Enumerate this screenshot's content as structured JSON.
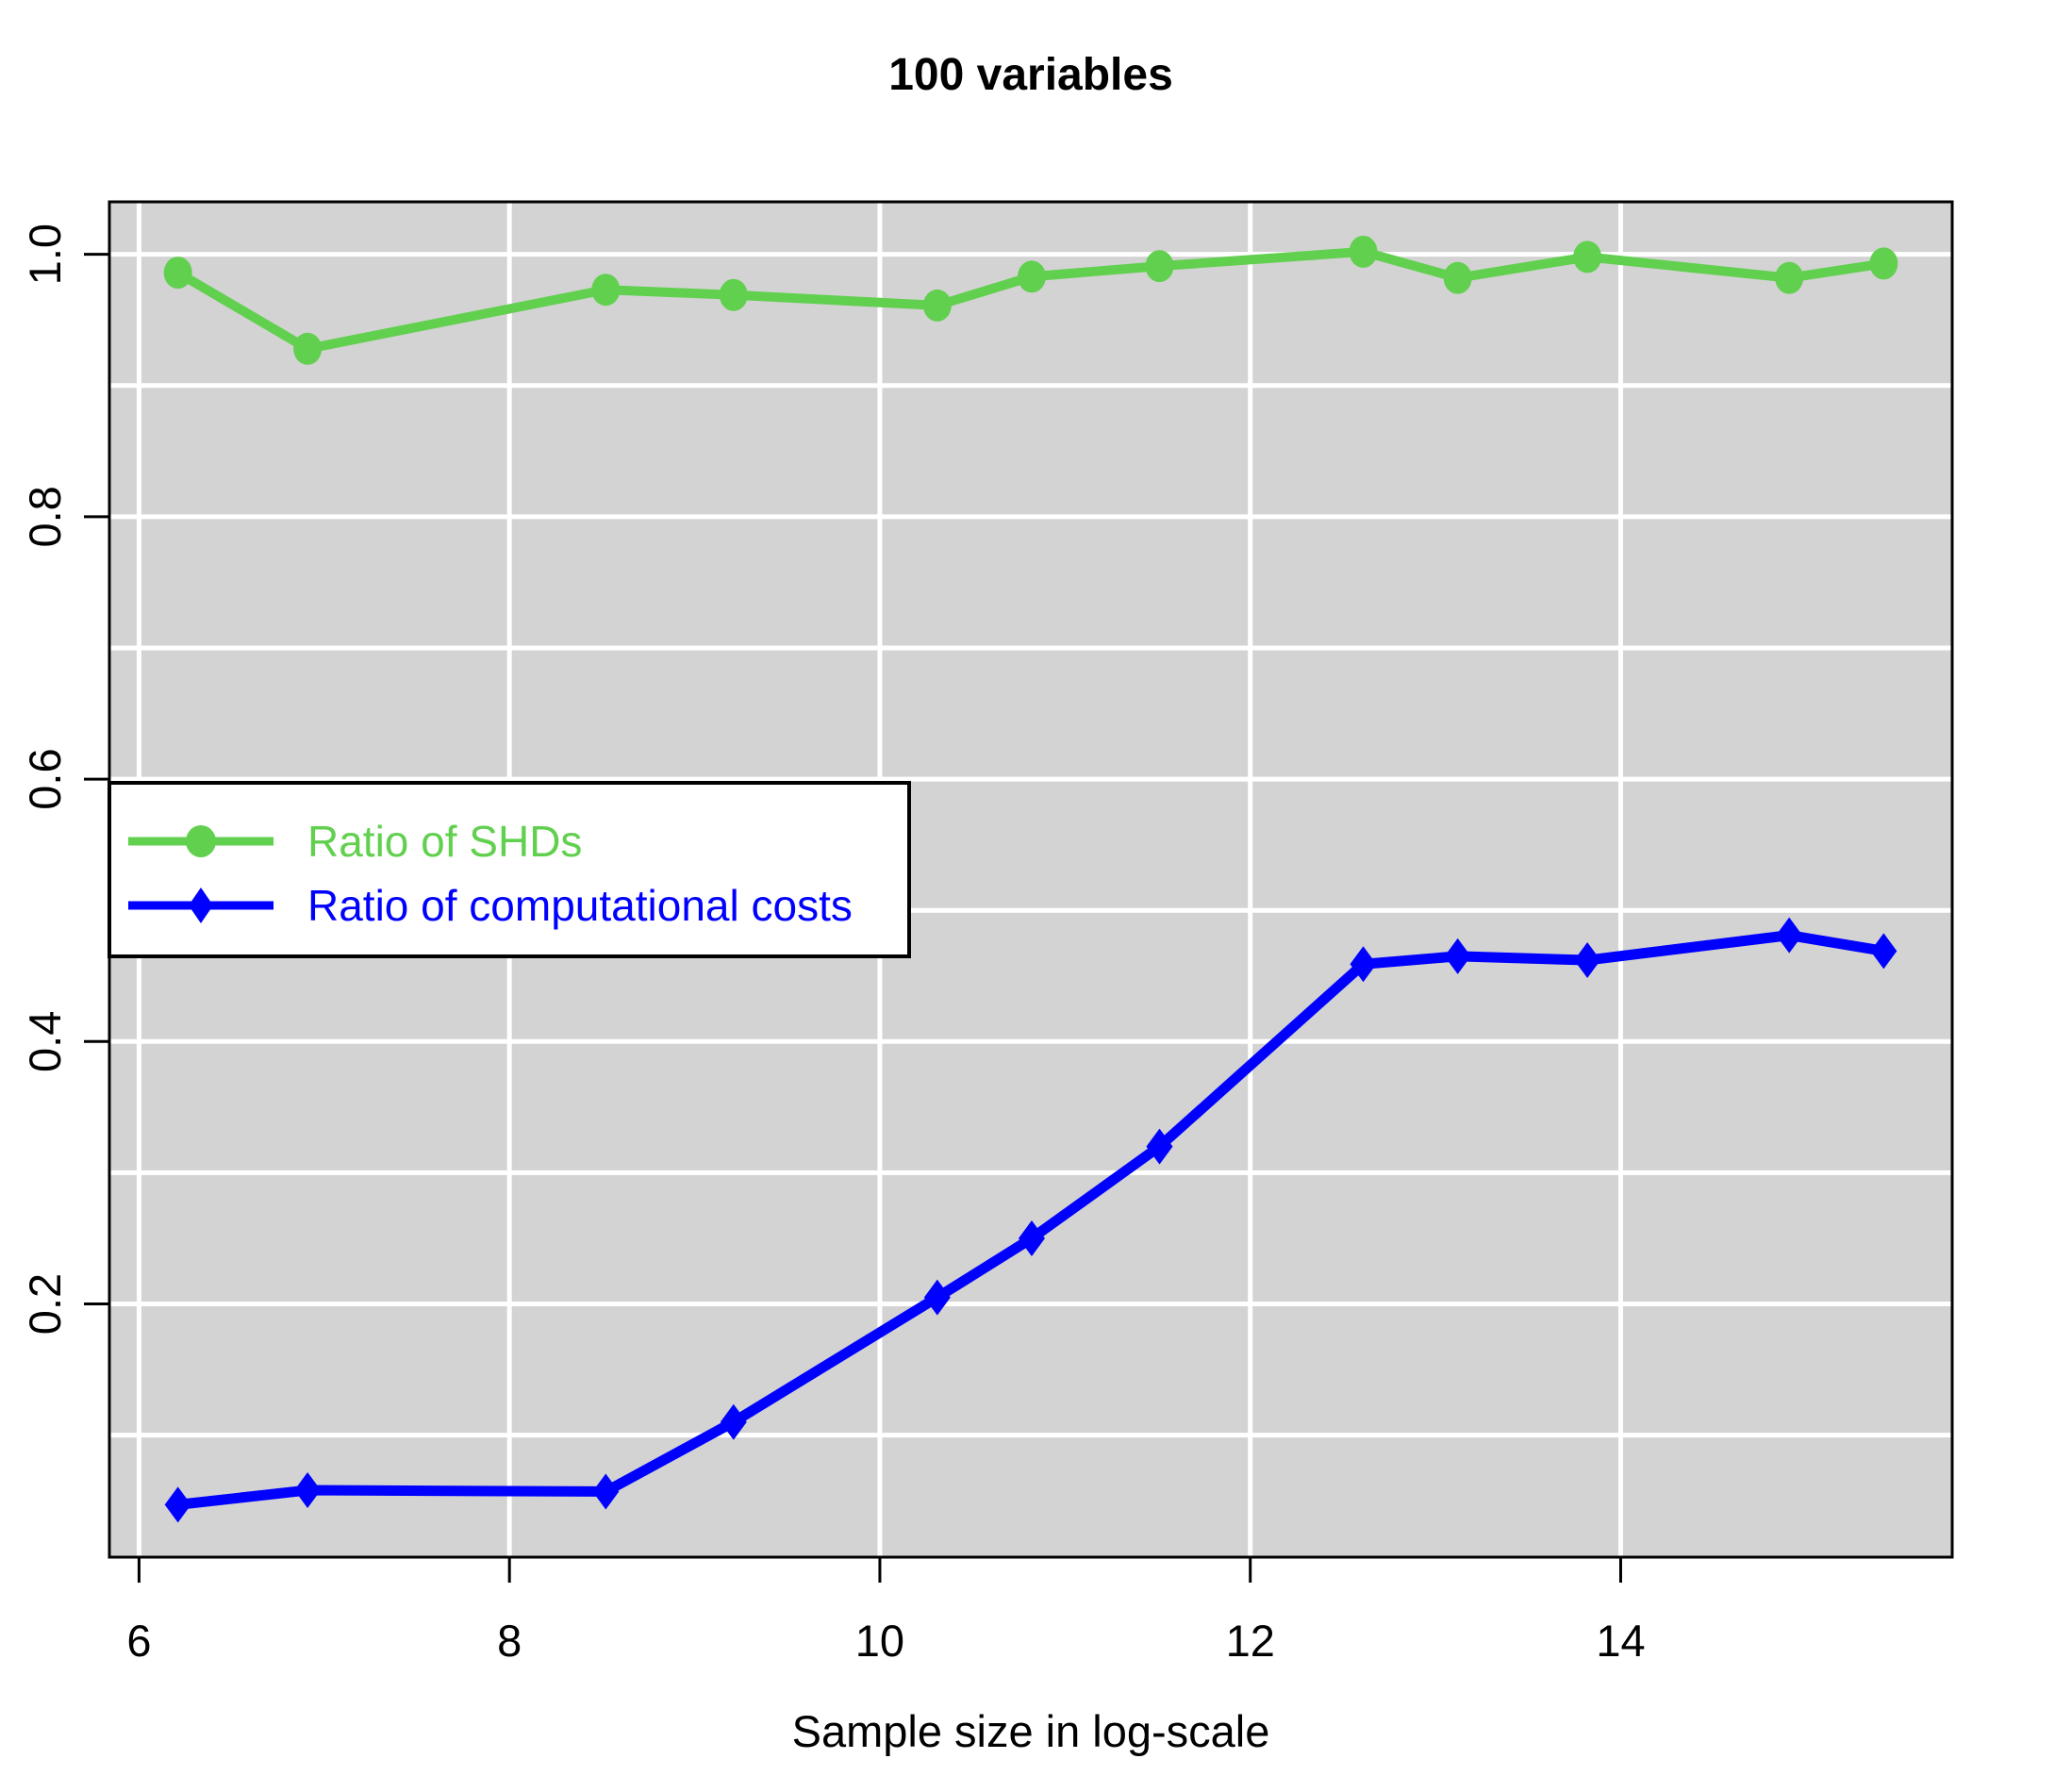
{
  "figure": {
    "title": "100 variables",
    "x_axis_label": "Sample size in log-scale"
  },
  "colors": {
    "plot_background": "#d3d3d3",
    "gridline": "#ffffff",
    "axis_and_text": "#000000",
    "shd_series": "#61d04f",
    "cost_series": "#0000ff",
    "legend_background": "#ffffff",
    "legend_border": "#000000"
  },
  "legend": {
    "items": [
      {
        "label": "Ratio of SHDs",
        "marker": "circle",
        "color": "#61d04f"
      },
      {
        "label": "Ratio of computational costs",
        "marker": "diamond",
        "color": "#0000ff"
      }
    ],
    "position": "middle-left"
  },
  "chart_data": {
    "type": "line",
    "title": "100 variables",
    "xlabel": "Sample size in log-scale",
    "ylabel": "",
    "x": [
      6.21,
      6.91,
      8.52,
      9.21,
      10.31,
      10.82,
      11.51,
      12.61,
      13.12,
      13.82,
      14.91,
      15.42
    ],
    "series": [
      {
        "name": "Ratio of SHDs",
        "marker": "circle",
        "color": "#61d04f",
        "values": [
          0.986,
          0.928,
          0.973,
          0.969,
          0.961,
          0.983,
          0.991,
          1.002,
          0.982,
          0.998,
          0.982,
          0.993
        ]
      },
      {
        "name": "Ratio of computational costs",
        "marker": "diamond",
        "color": "#0000ff",
        "values": [
          0.047,
          0.058,
          0.057,
          0.11,
          0.205,
          0.25,
          0.32,
          0.459,
          0.465,
          0.462,
          0.481,
          0.469
        ]
      }
    ],
    "x_ticks": [
      6,
      8,
      10,
      12,
      14
    ],
    "y_ticks": [
      0.2,
      0.4,
      0.6,
      0.8,
      1.0
    ],
    "xlim": [
      5.84,
      15.79
    ],
    "ylim": [
      0.007,
      1.04
    ],
    "grid": {
      "vertical_at": [
        6,
        8,
        10,
        12,
        14
      ],
      "horizontal_at": [
        0.1,
        0.2,
        0.3,
        0.4,
        0.5,
        0.6,
        0.7,
        0.8,
        0.9,
        1.0
      ]
    },
    "grid_on": true,
    "legend_position": "middle-left"
  }
}
